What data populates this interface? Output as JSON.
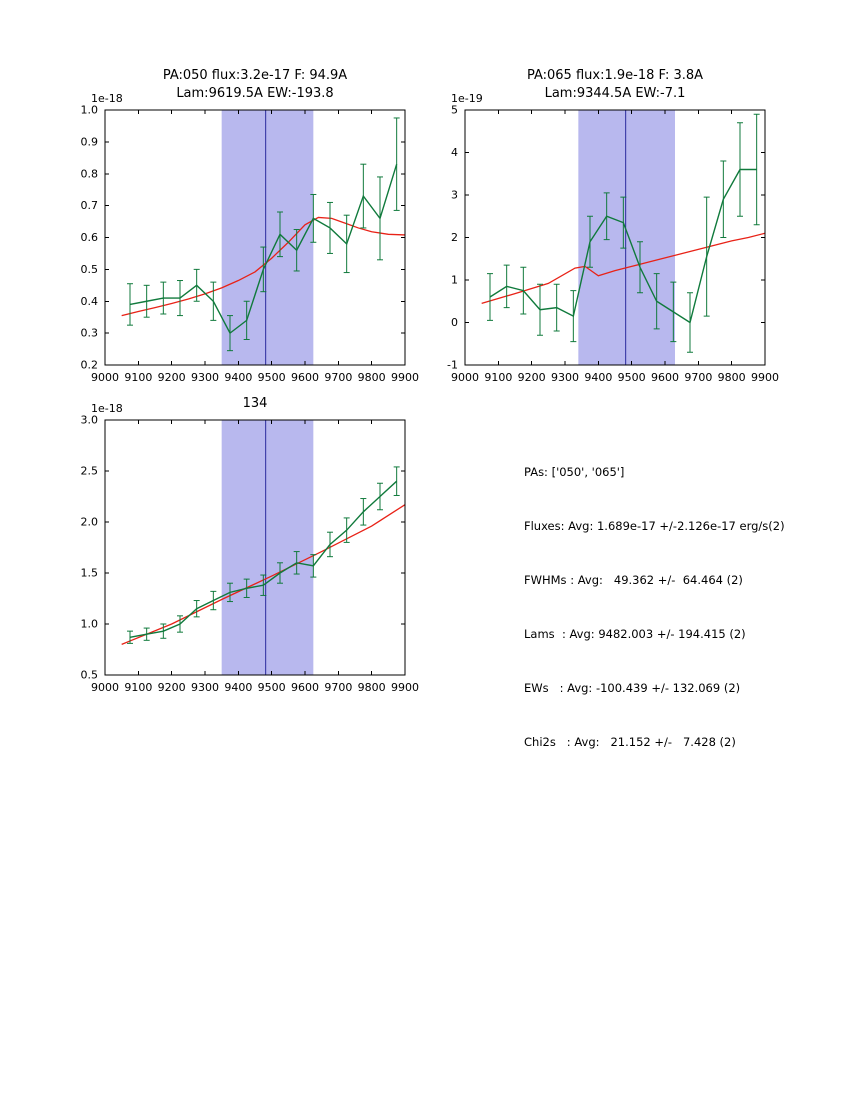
{
  "figure": {
    "background": "#ffffff"
  },
  "colors": {
    "data": "#107a3c",
    "fit": "#e82217",
    "band": "#b8b8ee",
    "vline": "#2a2a9e",
    "axis": "#000000"
  },
  "stats": {
    "lines": [
      "PAs: ['050', '065']",
      "Fluxes: Avg: 1.689e-17 +/-2.126e-17 erg/s(2)",
      "FWHMs : Avg:   49.362 +/-  64.464 (2)",
      "Lams  : Avg: 9482.003 +/- 194.415 (2)",
      "EWs   : Avg: -100.439 +/- 132.069 (2)",
      "Chi2s   : Avg:   21.152 +/-   7.428 (2)"
    ]
  },
  "chart_data": [
    {
      "type": "line",
      "title_lines": [
        "PA:050 flux:3.2e-17 F: 94.9A",
        "Lam:9619.5A EW:-193.8"
      ],
      "offset_label": "1e-18",
      "xlabel": "",
      "ylabel": "",
      "xlim": [
        9000,
        9900
      ],
      "ylim": [
        0.2,
        1.0
      ],
      "xticks": [
        "9000",
        "9100",
        "9200",
        "9300",
        "9400",
        "9500",
        "9600",
        "9700",
        "9800",
        "9900"
      ],
      "yticks": [
        "0.2",
        "0.3",
        "0.4",
        "0.5",
        "0.6",
        "0.7",
        "0.8",
        "0.9",
        "1.0"
      ],
      "band": [
        9350,
        9625
      ],
      "vline": 9482,
      "series": {
        "name": "spectrum",
        "x": [
          9075,
          9125,
          9175,
          9225,
          9275,
          9325,
          9375,
          9425,
          9475,
          9525,
          9575,
          9625,
          9675,
          9725,
          9775,
          9825,
          9875
        ],
        "y": [
          0.39,
          0.4,
          0.41,
          0.41,
          0.45,
          0.4,
          0.3,
          0.34,
          0.5,
          0.61,
          0.56,
          0.66,
          0.63,
          0.58,
          0.73,
          0.66,
          0.83
        ],
        "err": [
          0.065,
          0.05,
          0.05,
          0.055,
          0.05,
          0.06,
          0.055,
          0.06,
          0.07,
          0.07,
          0.065,
          0.075,
          0.08,
          0.09,
          0.1,
          0.13,
          0.145
        ]
      },
      "fit": {
        "name": "model-fit",
        "x": [
          9050,
          9100,
          9150,
          9200,
          9250,
          9300,
          9350,
          9400,
          9450,
          9500,
          9550,
          9600,
          9640,
          9680,
          9720,
          9760,
          9800,
          9850,
          9900
        ],
        "y": [
          0.355,
          0.368,
          0.38,
          0.393,
          0.407,
          0.423,
          0.442,
          0.465,
          0.492,
          0.535,
          0.585,
          0.64,
          0.663,
          0.66,
          0.645,
          0.63,
          0.618,
          0.61,
          0.608
        ]
      }
    },
    {
      "type": "line",
      "title_lines": [
        "PA:065 flux:1.9e-18 F: 3.8A",
        "Lam:9344.5A EW:-7.1"
      ],
      "offset_label": "1e-19",
      "xlabel": "",
      "ylabel": "",
      "xlim": [
        9000,
        9900
      ],
      "ylim": [
        -1,
        5
      ],
      "xticks": [
        "9000",
        "9100",
        "9200",
        "9300",
        "9400",
        "9500",
        "9600",
        "9700",
        "9800",
        "9900"
      ],
      "yticks": [
        "-1",
        "0",
        "1",
        "2",
        "3",
        "4",
        "5"
      ],
      "band": [
        9340,
        9630
      ],
      "vline": 9482,
      "series": {
        "name": "spectrum",
        "x": [
          9075,
          9125,
          9175,
          9225,
          9275,
          9325,
          9375,
          9425,
          9475,
          9525,
          9575,
          9625,
          9675,
          9725,
          9775,
          9825,
          9875
        ],
        "y": [
          0.6,
          0.85,
          0.75,
          0.3,
          0.35,
          0.15,
          1.9,
          2.5,
          2.35,
          1.3,
          0.5,
          0.25,
          0.0,
          1.55,
          2.9,
          3.6,
          3.6
        ],
        "err": [
          0.55,
          0.5,
          0.55,
          0.6,
          0.55,
          0.6,
          0.6,
          0.55,
          0.6,
          0.6,
          0.65,
          0.7,
          0.7,
          1.4,
          0.9,
          1.1,
          1.3
        ]
      },
      "fit": {
        "name": "model-fit",
        "x": [
          9050,
          9150,
          9250,
          9330,
          9360,
          9400,
          9450,
          9500,
          9550,
          9600,
          9650,
          9700,
          9750,
          9800,
          9850,
          9900
        ],
        "y": [
          0.45,
          0.68,
          0.92,
          1.28,
          1.32,
          1.1,
          1.22,
          1.32,
          1.42,
          1.52,
          1.62,
          1.72,
          1.82,
          1.92,
          2.0,
          2.1
        ]
      }
    },
    {
      "type": "line",
      "title_lines": [
        "134"
      ],
      "offset_label": "1e-18",
      "xlabel": "",
      "ylabel": "",
      "xlim": [
        9000,
        9900
      ],
      "ylim": [
        0.5,
        3.0
      ],
      "xticks": [
        "9000",
        "9100",
        "9200",
        "9300",
        "9400",
        "9500",
        "9600",
        "9700",
        "9800",
        "9900"
      ],
      "yticks": [
        "0.5",
        "1.0",
        "1.5",
        "2.0",
        "2.5",
        "3.0"
      ],
      "band": [
        9350,
        9625
      ],
      "vline": 9482,
      "series": {
        "name": "spectrum",
        "x": [
          9075,
          9125,
          9175,
          9225,
          9275,
          9325,
          9375,
          9425,
          9475,
          9525,
          9575,
          9625,
          9675,
          9725,
          9775,
          9825,
          9875
        ],
        "y": [
          0.87,
          0.9,
          0.93,
          1.0,
          1.15,
          1.23,
          1.31,
          1.35,
          1.38,
          1.5,
          1.6,
          1.57,
          1.78,
          1.92,
          2.1,
          2.25,
          2.4
        ],
        "err": [
          0.06,
          0.06,
          0.07,
          0.08,
          0.08,
          0.09,
          0.09,
          0.09,
          0.1,
          0.1,
          0.11,
          0.11,
          0.12,
          0.12,
          0.13,
          0.13,
          0.14
        ]
      },
      "fit": {
        "name": "model-fit",
        "x": [
          9050,
          9200,
          9350,
          9500,
          9650,
          9800,
          9900
        ],
        "y": [
          0.8,
          1.0,
          1.24,
          1.47,
          1.71,
          1.96,
          2.17
        ]
      }
    }
  ]
}
